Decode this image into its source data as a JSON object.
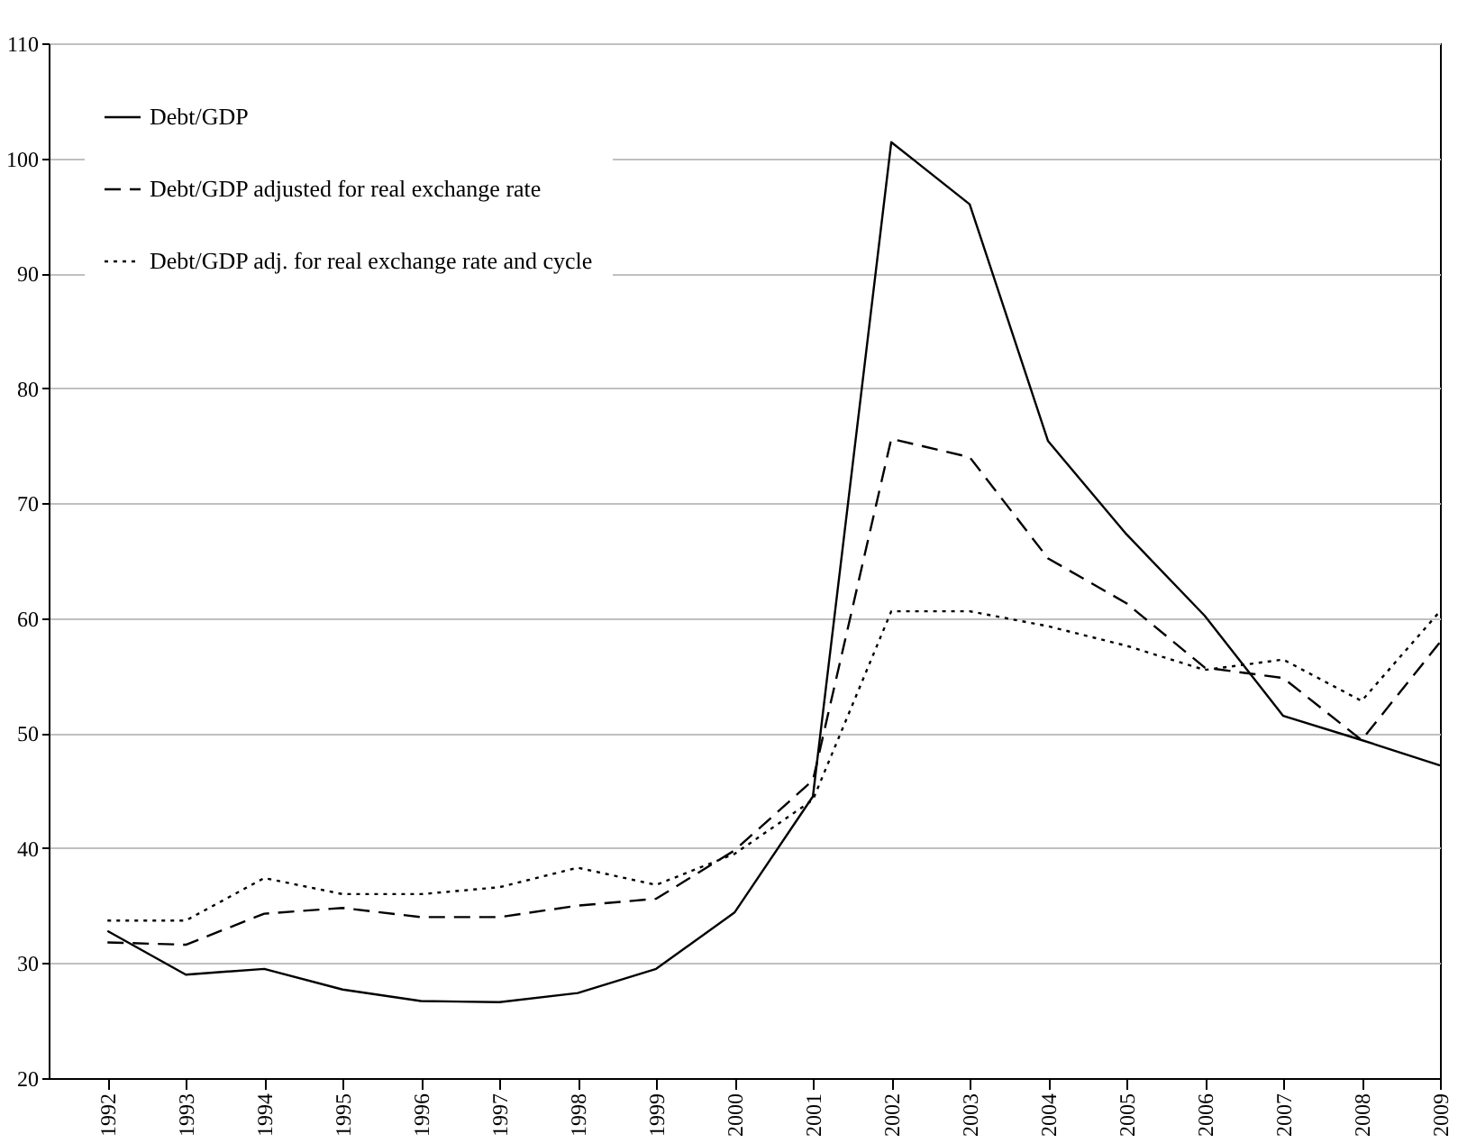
{
  "chart_data": {
    "type": "line",
    "categories": [
      "1992",
      "1993",
      "1994",
      "1995",
      "1996",
      "1997",
      "1998",
      "1999",
      "2000",
      "2001",
      "2002",
      "2003",
      "2004",
      "2005",
      "2006",
      "2007",
      "2008",
      "2009"
    ],
    "series": [
      {
        "name": "Debt/GDP",
        "color": "#000000",
        "line_style": "solid",
        "values": [
          32.8,
          29.0,
          29.5,
          27.7,
          26.7,
          26.6,
          27.4,
          29.5,
          34.4,
          44.5,
          101.4,
          96.0,
          75.4,
          67.3,
          60.2,
          51.5,
          49.4,
          47.2
        ]
      },
      {
        "name": "Debt/GDP adjusted for real exchange rate",
        "color": "#000000",
        "line_style": "dashed",
        "values": [
          31.8,
          31.6,
          34.3,
          34.8,
          34.0,
          34.0,
          35.0,
          35.6,
          39.8,
          45.9,
          75.6,
          74.0,
          65.2,
          61.3,
          55.7,
          54.8,
          49.4,
          57.9
        ]
      },
      {
        "name": "Debt/GDP adj. for real exchange rate and cycle",
        "color": "#000000",
        "line_style": "dotted",
        "values": [
          33.7,
          33.7,
          37.4,
          36.0,
          36.0,
          36.6,
          38.3,
          36.8,
          39.5,
          44.2,
          60.6,
          60.6,
          59.3,
          57.6,
          55.5,
          56.4,
          52.8,
          60.6
        ]
      }
    ],
    "ylim": [
      20,
      110
    ],
    "yticks": [
      20,
      30,
      40,
      50,
      60,
      70,
      80,
      90,
      100,
      110
    ],
    "grid": "y",
    "legend": "top left",
    "marker": "none"
  }
}
